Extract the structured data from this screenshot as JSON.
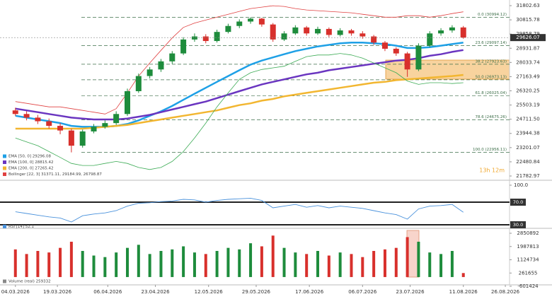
{
  "chart_data": [
    {
      "type": "candlestick",
      "log_y": true,
      "up_color": "#1e8c3c",
      "down_color": "#d8302c",
      "xlim": [
        -5.5,
        176.5
      ],
      "xticks": [
        {
          "value": 0,
          "label": "04.03.2026"
        },
        {
          "value": 15,
          "label": "19.03.2026"
        },
        {
          "value": 33,
          "label": "06.04.2026"
        },
        {
          "value": 50,
          "label": "23.04.2026"
        },
        {
          "value": 69,
          "label": "12.05.2026"
        },
        {
          "value": 86,
          "label": "29.05.2026"
        },
        {
          "value": 105,
          "label": "17.06.2026"
        },
        {
          "value": 124,
          "label": "06.07.2026"
        },
        {
          "value": 141,
          "label": "23.07.2026"
        },
        {
          "value": 160,
          "label": "11.08.2026"
        },
        {
          "value": 175,
          "label": "26.08.2026"
        }
      ],
      "ylim": [
        21782.97,
        31802.63
      ],
      "yticks": [
        31802.63,
        30815.78,
        29858.79,
        28931.87,
        28033.74,
        27163.49,
        26320.25,
        25503.19,
        {
          "value": 24711.5,
          "label": "24711.50"
        },
        23944.38,
        23201.07,
        22480.84,
        21782.97
      ],
      "x": [
        0,
        4,
        8,
        12,
        16,
        20,
        24,
        28,
        32,
        36,
        40,
        44,
        48,
        52,
        56,
        60,
        64,
        68,
        72,
        76,
        80,
        84,
        88,
        92,
        96,
        100,
        104,
        108,
        112,
        116,
        120,
        124,
        128,
        132,
        136,
        140,
        144,
        148,
        152,
        156,
        160
      ],
      "open": [
        25200,
        25000,
        24800,
        24600,
        24350,
        24100,
        23300,
        24050,
        24300,
        24500,
        25000,
        26300,
        27200,
        27600,
        28100,
        28600,
        29500,
        29700,
        29400,
        30000,
        30400,
        30700,
        30900,
        30500,
        29500,
        29900,
        30300,
        29900,
        30200,
        29800,
        30100,
        29900,
        29700,
        29300,
        28900,
        28600,
        27600,
        29100,
        29900,
        30100,
        30300
      ],
      "high": [
        25350,
        25150,
        24950,
        24750,
        24500,
        24200,
        24150,
        24450,
        24650,
        25150,
        26450,
        27350,
        27750,
        28250,
        28750,
        29650,
        29900,
        29850,
        30150,
        30550,
        30850,
        30994.12,
        30950,
        30600,
        30050,
        30450,
        30400,
        30350,
        30300,
        30250,
        30200,
        30050,
        29800,
        29400,
        29000,
        28700,
        29250,
        30050,
        30250,
        30450,
        30400
      ],
      "low": [
        24900,
        24650,
        24450,
        24200,
        23900,
        22956.11,
        23200,
        23950,
        24200,
        24400,
        24900,
        26200,
        27050,
        27450,
        27950,
        28500,
        29350,
        29250,
        29300,
        29900,
        30250,
        30550,
        30350,
        29350,
        29400,
        29800,
        29750,
        29800,
        29650,
        29700,
        29750,
        29550,
        29150,
        28750,
        28450,
        27150,
        27500,
        29000,
        29750,
        29950,
        29550
      ],
      "close": [
        25000,
        24800,
        24600,
        24350,
        24100,
        23300,
        24050,
        24300,
        24500,
        25000,
        26300,
        27200,
        27600,
        28100,
        28600,
        29500,
        29700,
        29400,
        30000,
        30400,
        30700,
        30900,
        30500,
        29500,
        29900,
        30300,
        29900,
        30200,
        29800,
        30100,
        29900,
        29700,
        29300,
        28900,
        28600,
        27600,
        29100,
        29900,
        30100,
        30300,
        29626.07
      ],
      "series": [
        {
          "name": "EMA [50, 0] 29296.08",
          "color": "#1ea0e6",
          "width": 2.5,
          "values": [
            24900,
            24800,
            24700,
            24600,
            24500,
            24350,
            24300,
            24300,
            24300,
            24350,
            24450,
            24650,
            24900,
            25150,
            25450,
            25800,
            26150,
            26500,
            26850,
            27200,
            27550,
            27900,
            28150,
            28350,
            28550,
            28750,
            28900,
            29050,
            29150,
            29250,
            29300,
            29300,
            29250,
            29200,
            29100,
            28950,
            28950,
            29000,
            29100,
            29200,
            29296.08
          ]
        },
        {
          "name": "EMA [100, 0] 28815.42",
          "color": "#6a35c0",
          "width": 2.5,
          "values": [
            25300,
            25200,
            25100,
            25000,
            24900,
            24800,
            24750,
            24700,
            24700,
            24700,
            24750,
            24850,
            24950,
            25100,
            25250,
            25400,
            25550,
            25700,
            25900,
            26100,
            26300,
            26500,
            26700,
            26850,
            27000,
            27150,
            27300,
            27400,
            27550,
            27650,
            27750,
            27850,
            27950,
            28050,
            28150,
            28200,
            28300,
            28450,
            28550,
            28700,
            28815.42
          ]
        },
        {
          "name": "EMA [200, 0] 27265.42",
          "color": "#f2b630",
          "width": 2.5,
          "values": [
            24200,
            24200,
            24200,
            24200,
            24200,
            24200,
            24200,
            24250,
            24300,
            24350,
            24400,
            24500,
            24600,
            24700,
            24800,
            24900,
            25000,
            25100,
            25200,
            25350,
            25500,
            25600,
            25750,
            25850,
            26000,
            26100,
            26200,
            26300,
            26400,
            26500,
            26600,
            26700,
            26800,
            26850,
            26950,
            27000,
            27050,
            27100,
            27150,
            27200,
            27265.42
          ]
        },
        {
          "name": "Bollinger [22, 3] 31371.11, 29184.99, 26798.87",
          "color": "#e04040",
          "width": 0.8,
          "values": [
            25700,
            25600,
            25500,
            25400,
            25400,
            25300,
            25200,
            25100,
            25000,
            25300,
            26200,
            27200,
            28000,
            28800,
            29600,
            30300,
            30600,
            30800,
            31000,
            31200,
            31400,
            31600,
            31700,
            31800,
            31750,
            31600,
            31500,
            31450,
            31400,
            31350,
            31300,
            31200,
            31100,
            31000,
            31000,
            31100,
            31100,
            31000,
            31100,
            31250,
            31371.11
          ]
        },
        {
          "color": "#3cab55",
          "width": 0.8,
          "values": [
            23700,
            23500,
            23300,
            23000,
            22700,
            22400,
            22300,
            22300,
            22400,
            22500,
            22400,
            22200,
            22100,
            22200,
            22500,
            23000,
            23700,
            24500,
            25400,
            26200,
            27000,
            27400,
            27600,
            27700,
            27800,
            28100,
            28400,
            28500,
            28500,
            28600,
            28500,
            28300,
            28000,
            27700,
            27400,
            26900,
            26700,
            26800,
            26800,
            26750,
            26798.87
          ]
        }
      ],
      "fib": [
        {
          "label": "0.0 (30994.12)",
          "value": 30994.12
        },
        {
          "label": "23.6 (29097.14)",
          "value": 29097.14
        },
        {
          "label": "38.2 (27923.63)",
          "value": 27923.63
        },
        {
          "label": "50.0 (26973.13)",
          "value": 26973.13
        },
        {
          "label": "61.8 (26025.04)",
          "value": 26025.04
        },
        {
          "label": "78.6 (24675.26)",
          "value": 24675.26
        },
        {
          "label": "100.0 (22956.11)",
          "value": 22956.11
        }
      ],
      "countdown": "13h 12m"
    },
    {
      "type": "line",
      "ylim": [
        25,
        100
      ],
      "yticks": [
        {
          "value": 100,
          "label": "100.0"
        },
        {
          "value": 70,
          "label": "70.0"
        },
        {
          "value": 30,
          "label": "30.0"
        }
      ],
      "series": [
        {
          "name": "RSI [14] 52.1",
          "color": "#4a92dc",
          "values": [
            53,
            50,
            47,
            44,
            42,
            35,
            46,
            49,
            51,
            55,
            63,
            68,
            69,
            71,
            72,
            75,
            74,
            70,
            73,
            75,
            76,
            77,
            73,
            60,
            63,
            66,
            61,
            64,
            60,
            63,
            61,
            59,
            55,
            51,
            48,
            40,
            58,
            63,
            64,
            66,
            52.1
          ]
        }
      ]
    },
    {
      "type": "bar",
      "ylim": [
        -601424,
        2850892
      ],
      "yticks": [
        2850892,
        1987813,
        1124734,
        261655,
        -601424
      ],
      "series": [
        {
          "name": "Volume (real) 259332",
          "values": [
            1800000,
            1500000,
            1700000,
            1600000,
            1900000,
            2300000,
            1700000,
            1400000,
            1300000,
            1600000,
            1900000,
            2100000,
            1500000,
            1700000,
            1800000,
            2000000,
            1600000,
            1500000,
            1700000,
            1900000,
            1800000,
            2200000,
            2000000,
            2700000,
            1900000,
            1600000,
            1500000,
            1700000,
            1400000,
            1600000,
            1500000,
            1300000,
            1700000,
            1800000,
            1900000,
            2600000,
            2300000,
            1600000,
            1500000,
            1700000,
            259332
          ]
        }
      ]
    }
  ]
}
